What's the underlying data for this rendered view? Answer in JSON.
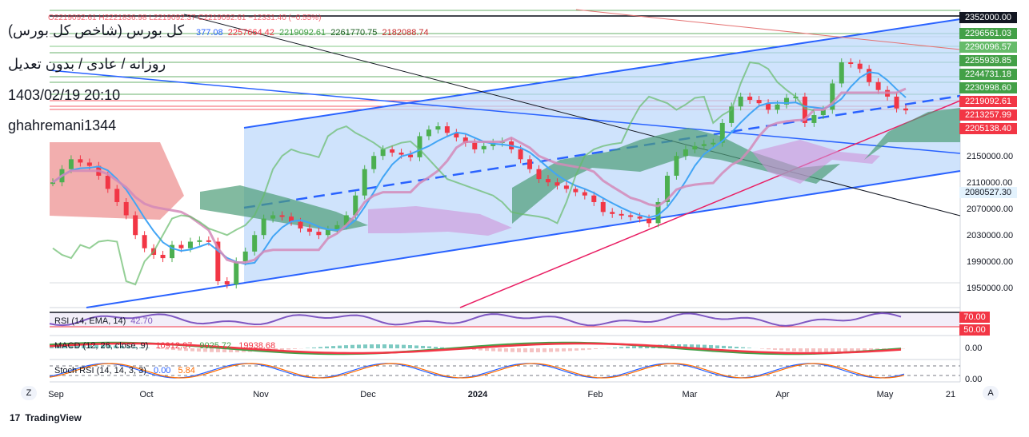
{
  "header": {
    "title": "کل بورس (شاخص کل بورس)",
    "subtitle": "روزانه / عادی / بدون تعدیل",
    "datetime": "1403/02/19 20:10",
    "author": "ghahremani1344",
    "ohlc_line": "O2219092.61  H2221836.98  L2219092.37  C2219092.61  −12331.40 (−0.55%)",
    "ind_values": [
      "377.08",
      "2257664.42",
      "2219092.61",
      "2261770.75",
      "2182088.74"
    ]
  },
  "colors": {
    "up": "#26a69a",
    "down": "#ef5350",
    "candle_up": "#4caf50",
    "candle_down": "#f23645",
    "channel": "#2962ff",
    "channel_fill": "#bbd7fb",
    "cloud_green": "#4d9d77",
    "cloud_red": "#ef9a9a",
    "kijun": "#e55f7a",
    "tenkan": "#42a5f5",
    "chikou": "#66bb6a",
    "purple": "#7e57c2"
  },
  "price_labels": [
    {
      "text": "2352000.00",
      "bg": "#131722"
    },
    {
      "text": "2296561.03",
      "bg": "#43a047"
    },
    {
      "text": "2290096.57",
      "bg": "#66bb6a"
    },
    {
      "text": "2255939.85",
      "bg": "#43a047"
    },
    {
      "text": "2244731.18",
      "bg": "#43a047"
    },
    {
      "text": "2230998.60",
      "bg": "#43a047"
    },
    {
      "text": "2219092.61",
      "bg": "#f23645"
    },
    {
      "text": "2213257.99",
      "bg": "#f23645"
    },
    {
      "text": "2205138.40",
      "bg": "#f23645"
    },
    {
      "text": "2080527.30",
      "bg": "#e3f2fd"
    }
  ],
  "indicators": {
    "rsi": {
      "label": "RSI (14, EMA, 14)",
      "value": "42.70",
      "upper": "70.00",
      "lower": "50.00"
    },
    "macd": {
      "label": "MACD (12, 26, close, 9)",
      "v1": "10912.97",
      "v2": "9025.72",
      "v3": "19938.68",
      "axis": "0.00"
    },
    "stoch": {
      "label": "Stoch RSI (14, 14, 3, 3)",
      "k": "0.00",
      "d": "5.84",
      "axis": "0.00"
    }
  },
  "footer": {
    "brand": "TradingView"
  },
  "buttons": {
    "zoom": "Z",
    "auto": "A"
  },
  "chart_data": {
    "type": "candlestick",
    "title": "کل بورس (شاخص کل بورس)",
    "y_ticks": [
      1950000,
      1990000,
      2030000,
      2070000,
      2110000,
      2150000
    ],
    "ylim": [
      1920000,
      2372000
    ],
    "x_ticks": [
      "Sep",
      "Oct",
      "Nov",
      "Dec",
      "2024",
      "Feb",
      "Mar",
      "Apr",
      "May",
      "21"
    ],
    "closes": [
      2110000,
      2130000,
      2145000,
      2140000,
      2135000,
      2120000,
      2100000,
      2080000,
      2060000,
      2030000,
      2010000,
      2000000,
      1995000,
      2015000,
      2010000,
      2020000,
      2022000,
      2020000,
      1960000,
      1955000,
      1990000,
      2005000,
      2030000,
      2055000,
      2060000,
      2058000,
      2050000,
      2040000,
      2035000,
      2030000,
      2038000,
      2045000,
      2060000,
      2090000,
      2130000,
      2150000,
      2160000,
      2155000,
      2152000,
      2148000,
      2180000,
      2190000,
      2195000,
      2185000,
      2178000,
      2170000,
      2160000,
      2165000,
      2170000,
      2172000,
      2160000,
      2145000,
      2130000,
      2115000,
      2110000,
      2105000,
      2100000,
      2095000,
      2090000,
      2080000,
      2065000,
      2062000,
      2060000,
      2058000,
      2055000,
      2048000,
      2080000,
      2120000,
      2150000,
      2160000,
      2165000,
      2168000,
      2170000,
      2200000,
      2225000,
      2240000,
      2235000,
      2230000,
      2220000,
      2228000,
      2238000,
      2240000,
      2200000,
      2212000,
      2220000,
      2260000,
      2292000,
      2290000,
      2282000,
      2262000,
      2250000,
      2240000,
      2222000,
      2219092
    ]
  }
}
